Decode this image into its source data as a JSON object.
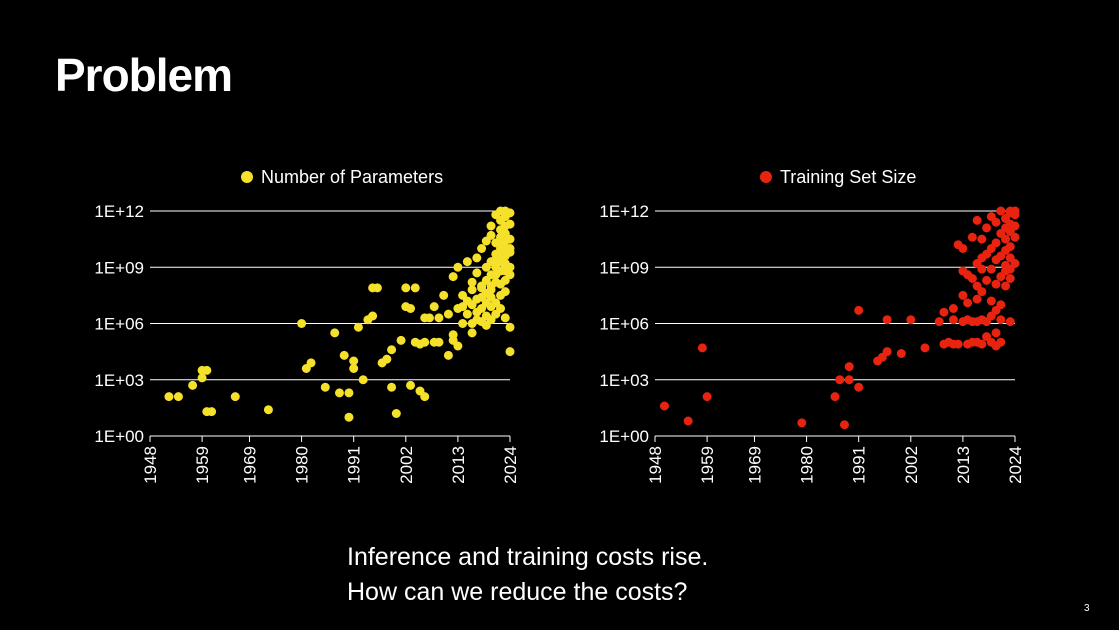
{
  "slide": {
    "title": "Problem",
    "caption_line1": "Inference and training costs rise.",
    "caption_line2": "How can we reduce the costs?",
    "page_number": "3"
  },
  "chart_data": [
    {
      "type": "scatter",
      "legend": "top",
      "grid": true,
      "log_y": true,
      "xlim": [
        1948,
        2024
      ],
      "ylim": [
        0,
        12
      ],
      "x_ticks": [
        "1948",
        "1959",
        "1969",
        "1980",
        "1991",
        "2002",
        "2013",
        "2024"
      ],
      "y_ticks": [
        "1E+00",
        "1E+03",
        "1E+06",
        "1E+09",
        "1E+12"
      ],
      "series": [
        {
          "name": "Number of Parameters",
          "color": "#f5e12a",
          "points": [
            [
              1952,
              2.1
            ],
            [
              1954,
              2.1
            ],
            [
              1957,
              2.7
            ],
            [
              1959,
              3.1
            ],
            [
              1959,
              3.5
            ],
            [
              1960,
              3.5
            ],
            [
              1960,
              1.3
            ],
            [
              1961,
              1.3
            ],
            [
              1966,
              2.1
            ],
            [
              1973,
              1.4
            ],
            [
              1980,
              6.0
            ],
            [
              1981,
              3.6
            ],
            [
              1982,
              3.9
            ],
            [
              1985,
              2.6
            ],
            [
              1987,
              5.5
            ],
            [
              1988,
              2.3
            ],
            [
              1989,
              4.3
            ],
            [
              1990,
              2.3
            ],
            [
              1990,
              1.0
            ],
            [
              1991,
              4.0
            ],
            [
              1991,
              3.6
            ],
            [
              1992,
              5.8
            ],
            [
              1993,
              3.0
            ],
            [
              1994,
              6.2
            ],
            [
              1995,
              6.4
            ],
            [
              1995,
              7.9
            ],
            [
              1996,
              7.9
            ],
            [
              1997,
              3.9
            ],
            [
              1998,
              4.1
            ],
            [
              1999,
              2.6
            ],
            [
              1999,
              4.6
            ],
            [
              2000,
              1.2
            ],
            [
              2001,
              5.1
            ],
            [
              2002,
              7.9
            ],
            [
              2002,
              6.9
            ],
            [
              2003,
              6.8
            ],
            [
              2003,
              2.7
            ],
            [
              2004,
              7.9
            ],
            [
              2004,
              5.0
            ],
            [
              2005,
              4.9
            ],
            [
              2005,
              2.4
            ],
            [
              2006,
              6.3
            ],
            [
              2006,
              2.1
            ],
            [
              2006,
              5.0
            ],
            [
              2007,
              6.3
            ],
            [
              2008,
              6.9
            ],
            [
              2008,
              5.0
            ],
            [
              2009,
              6.3
            ],
            [
              2009,
              5.0
            ],
            [
              2010,
              7.5
            ],
            [
              2011,
              6.5
            ],
            [
              2011,
              4.3
            ],
            [
              2012,
              5.1
            ],
            [
              2012,
              8.5
            ],
            [
              2012,
              5.4
            ],
            [
              2013,
              6.8
            ],
            [
              2013,
              9.0
            ],
            [
              2013,
              4.8
            ],
            [
              2014,
              6.0
            ],
            [
              2014,
              7.5
            ],
            [
              2014,
              6.9
            ],
            [
              2015,
              6.5
            ],
            [
              2015,
              9.3
            ],
            [
              2015,
              7.2
            ],
            [
              2016,
              6.0
            ],
            [
              2016,
              7.0
            ],
            [
              2016,
              5.5
            ],
            [
              2016,
              7.8
            ],
            [
              2016,
              8.2
            ],
            [
              2017,
              6.6
            ],
            [
              2017,
              7.3
            ],
            [
              2017,
              6.2
            ],
            [
              2017,
              8.7
            ],
            [
              2017,
              9.5
            ],
            [
              2018,
              6.8
            ],
            [
              2018,
              7.9
            ],
            [
              2018,
              6.1
            ],
            [
              2018,
              7.4
            ],
            [
              2018,
              8.0
            ],
            [
              2018,
              10.0
            ],
            [
              2019,
              7.1
            ],
            [
              2019,
              8.3
            ],
            [
              2019,
              6.4
            ],
            [
              2019,
              9.0
            ],
            [
              2019,
              7.6
            ],
            [
              2019,
              10.4
            ],
            [
              2019,
              5.9
            ],
            [
              2020,
              7.8
            ],
            [
              2020,
              8.6
            ],
            [
              2020,
              9.3
            ],
            [
              2020,
              6.9
            ],
            [
              2020,
              10.7
            ],
            [
              2020,
              8.0
            ],
            [
              2020,
              6.2
            ],
            [
              2020,
              11.2
            ],
            [
              2020,
              7.4
            ],
            [
              2021,
              8.2
            ],
            [
              2021,
              9.0
            ],
            [
              2021,
              9.7
            ],
            [
              2021,
              7.1
            ],
            [
              2021,
              10.3
            ],
            [
              2021,
              11.8
            ],
            [
              2021,
              8.6
            ],
            [
              2021,
              6.5
            ],
            [
              2021,
              9.4
            ],
            [
              2022,
              8.8
            ],
            [
              2022,
              10.0
            ],
            [
              2022,
              11.0
            ],
            [
              2022,
              9.3
            ],
            [
              2022,
              7.5
            ],
            [
              2022,
              10.6
            ],
            [
              2022,
              8.1
            ],
            [
              2022,
              11.5
            ],
            [
              2022,
              9.7
            ],
            [
              2022,
              12.0
            ],
            [
              2022,
              6.8
            ],
            [
              2022,
              10.2
            ],
            [
              2023,
              9.0
            ],
            [
              2023,
              10.4
            ],
            [
              2023,
              11.2
            ],
            [
              2023,
              8.3
            ],
            [
              2023,
              9.6
            ],
            [
              2023,
              10.8
            ],
            [
              2023,
              7.7
            ],
            [
              2023,
              11.7
            ],
            [
              2023,
              9.2
            ],
            [
              2023,
              10.0
            ],
            [
              2023,
              12.0
            ],
            [
              2023,
              8.8
            ],
            [
              2023,
              6.3
            ],
            [
              2024,
              9.0
            ],
            [
              2024,
              10.5
            ],
            [
              2024,
              11.3
            ],
            [
              2024,
              8.6
            ],
            [
              2024,
              9.8
            ],
            [
              2024,
              11.9
            ],
            [
              2024,
              10.0
            ],
            [
              2024,
              5.8
            ],
            [
              2024,
              4.5
            ]
          ]
        }
      ]
    },
    {
      "type": "scatter",
      "legend": "top",
      "grid": true,
      "log_y": true,
      "xlim": [
        1948,
        2024
      ],
      "ylim": [
        0,
        12
      ],
      "x_ticks": [
        "1948",
        "1959",
        "1969",
        "1980",
        "1991",
        "2002",
        "2013",
        "2024"
      ],
      "y_ticks": [
        "1E+00",
        "1E+03",
        "1E+06",
        "1E+09",
        "1E+12"
      ],
      "series": [
        {
          "name": "Training Set Size",
          "color": "#e8230f",
          "points": [
            [
              1950,
              1.6
            ],
            [
              1955,
              0.8
            ],
            [
              1958,
              4.7
            ],
            [
              1959,
              2.1
            ],
            [
              1979,
              0.7
            ],
            [
              1986,
              2.1
            ],
            [
              1987,
              3.0
            ],
            [
              1988,
              0.6
            ],
            [
              1989,
              3.0
            ],
            [
              1989,
              3.7
            ],
            [
              1991,
              2.6
            ],
            [
              1991,
              6.7
            ],
            [
              1995,
              4.0
            ],
            [
              1996,
              4.2
            ],
            [
              1997,
              6.2
            ],
            [
              1997,
              4.5
            ],
            [
              2000,
              4.4
            ],
            [
              2002,
              6.2
            ],
            [
              2005,
              4.7
            ],
            [
              2008,
              6.1
            ],
            [
              2009,
              4.9
            ],
            [
              2009,
              6.6
            ],
            [
              2010,
              5.0
            ],
            [
              2011,
              6.2
            ],
            [
              2011,
              6.8
            ],
            [
              2011,
              4.9
            ],
            [
              2012,
              10.2
            ],
            [
              2012,
              4.9
            ],
            [
              2013,
              10.0
            ],
            [
              2013,
              6.1
            ],
            [
              2013,
              8.8
            ],
            [
              2013,
              7.5
            ],
            [
              2014,
              8.6
            ],
            [
              2014,
              6.2
            ],
            [
              2014,
              7.1
            ],
            [
              2014,
              4.9
            ],
            [
              2015,
              10.6
            ],
            [
              2015,
              8.4
            ],
            [
              2015,
              6.1
            ],
            [
              2015,
              5.0
            ],
            [
              2016,
              11.5
            ],
            [
              2016,
              9.2
            ],
            [
              2016,
              8.0
            ],
            [
              2016,
              7.3
            ],
            [
              2016,
              6.1
            ],
            [
              2016,
              5.0
            ],
            [
              2017,
              10.5
            ],
            [
              2017,
              9.5
            ],
            [
              2017,
              8.9
            ],
            [
              2017,
              7.7
            ],
            [
              2017,
              6.2
            ],
            [
              2017,
              4.9
            ],
            [
              2018,
              11.1
            ],
            [
              2018,
              9.7
            ],
            [
              2018,
              8.3
            ],
            [
              2018,
              6.1
            ],
            [
              2018,
              5.3
            ],
            [
              2019,
              11.7
            ],
            [
              2019,
              10.0
            ],
            [
              2019,
              8.9
            ],
            [
              2019,
              7.2
            ],
            [
              2019,
              6.4
            ],
            [
              2019,
              5.0
            ],
            [
              2020,
              11.4
            ],
            [
              2020,
              10.3
            ],
            [
              2020,
              9.4
            ],
            [
              2020,
              8.1
            ],
            [
              2020,
              6.7
            ],
            [
              2020,
              5.5
            ],
            [
              2020,
              4.8
            ],
            [
              2021,
              12.0
            ],
            [
              2021,
              10.8
            ],
            [
              2021,
              9.6
            ],
            [
              2021,
              8.5
            ],
            [
              2021,
              7.0
            ],
            [
              2021,
              6.2
            ],
            [
              2021,
              5.0
            ],
            [
              2022,
              11.6
            ],
            [
              2022,
              10.5
            ],
            [
              2022,
              9.1
            ],
            [
              2022,
              8.0
            ],
            [
              2022,
              11.1
            ],
            [
              2022,
              9.9
            ],
            [
              2022,
              8.8
            ],
            [
              2023,
              11.9
            ],
            [
              2023,
              10.9
            ],
            [
              2023,
              9.5
            ],
            [
              2023,
              8.4
            ],
            [
              2023,
              11.3
            ],
            [
              2023,
              10.1
            ],
            [
              2023,
              12.0
            ],
            [
              2023,
              8.9
            ],
            [
              2023,
              6.1
            ],
            [
              2024,
              11.8
            ],
            [
              2024,
              10.6
            ],
            [
              2024,
              9.2
            ],
            [
              2024,
              11.2
            ],
            [
              2024,
              12.0
            ]
          ]
        }
      ]
    }
  ]
}
